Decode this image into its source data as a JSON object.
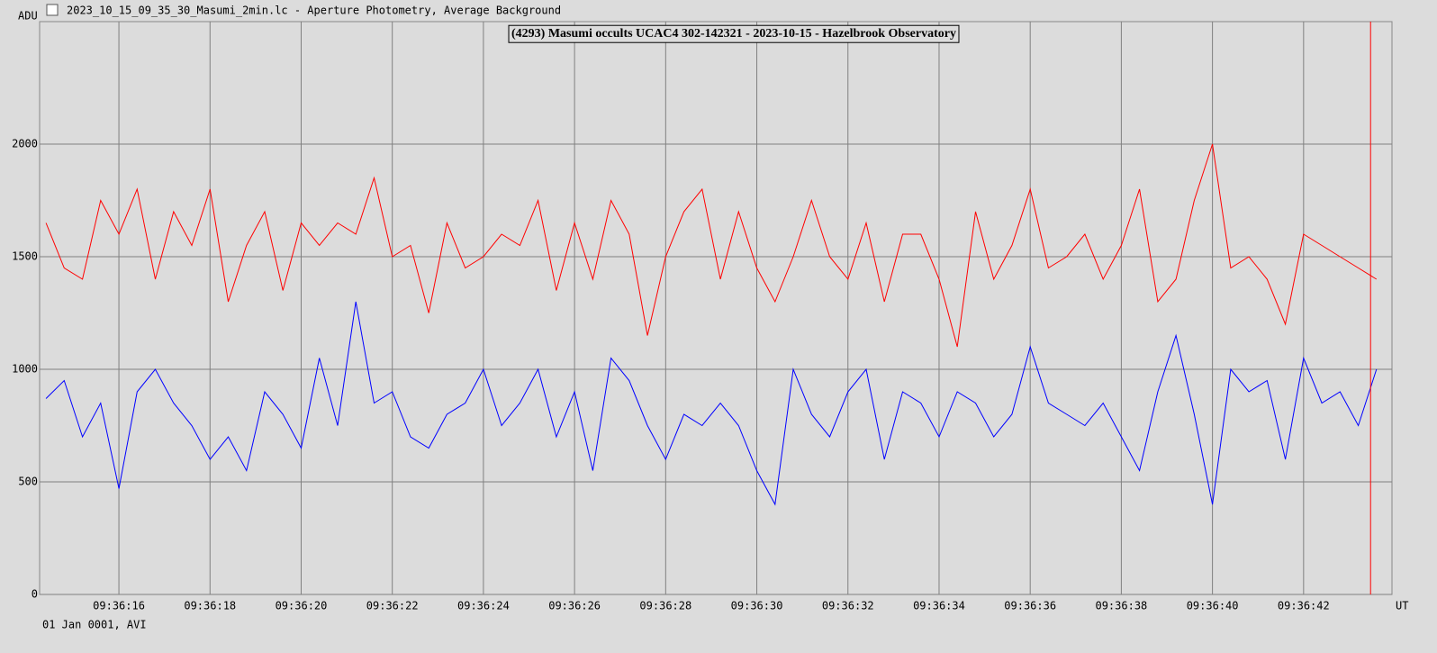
{
  "window_title": "2023_10_15_09_35_30_Masumi_2min.lc - Aperture Photometry, Average Background",
  "chart_data": {
    "type": "line",
    "title": "(4293) Masumi occults UCAC4 302-142321 - 2023-10-15 - Hazelbrook Observatory",
    "y_label": "ADU",
    "x_label": "UT",
    "footer": "01 Jan 0001, AVI",
    "x": [
      14.4,
      14.8,
      15.2,
      15.6,
      16,
      16.4,
      16.8,
      17.2,
      17.6,
      18,
      18.4,
      18.8,
      19.2,
      19.6,
      20,
      20.4,
      20.8,
      21.2,
      21.6,
      22,
      22.4,
      22.8,
      23.2,
      23.6,
      24,
      24.4,
      24.8,
      25.2,
      25.6,
      26,
      26.4,
      26.8,
      27.2,
      27.6,
      28,
      28.4,
      28.8,
      29.2,
      29.6,
      30,
      30.4,
      30.8,
      31.2,
      31.6,
      32,
      32.4,
      32.8,
      33.2,
      33.6,
      34,
      34.4,
      34.8,
      35.2,
      35.6,
      36,
      36.4,
      36.8,
      37.2,
      37.6,
      38,
      38.4,
      38.8,
      39.2,
      39.6,
      40,
      40.4,
      40.8,
      41.2,
      41.6,
      42,
      42.4,
      42.8,
      43.2,
      43.6
    ],
    "series": [
      {
        "color": "#ff0000",
        "values": [
          1650,
          1450,
          1400,
          1750,
          1600,
          1800,
          1400,
          1700,
          1550,
          1800,
          1300,
          1550,
          1700,
          1350,
          1650,
          1550,
          1650,
          1600,
          1850,
          1500,
          1550,
          1250,
          1650,
          1450,
          1500,
          1600,
          1550,
          1750,
          1350,
          1650,
          1400,
          1750,
          1600,
          1150,
          1500,
          1700,
          1800,
          1400,
          1700,
          1450,
          1300,
          1500,
          1750,
          1500,
          1400,
          1650,
          1300,
          1600,
          1600,
          1400,
          1100,
          1700,
          1400,
          1550,
          1800,
          1450,
          1500,
          1600,
          1400,
          1550,
          1800,
          1300,
          1400,
          1750,
          2000,
          1450,
          1500,
          1400,
          1200,
          1600,
          1550,
          1500,
          1450,
          1400
        ]
      },
      {
        "color": "#0000ff",
        "values": [
          870,
          950,
          700,
          850,
          470,
          900,
          1000,
          850,
          750,
          600,
          700,
          550,
          900,
          800,
          650,
          1050,
          750,
          1300,
          850,
          900,
          700,
          650,
          800,
          850,
          1000,
          750,
          850,
          1000,
          700,
          900,
          550,
          1050,
          950,
          750,
          600,
          800,
          750,
          850,
          750,
          550,
          400,
          1000,
          800,
          700,
          900,
          1000,
          600,
          900,
          850,
          700,
          900,
          850,
          700,
          800,
          1100,
          850,
          800,
          750,
          850,
          700,
          550,
          900,
          1150,
          800,
          400,
          1000,
          900,
          950,
          600,
          1050,
          850,
          900,
          750,
          1000
        ]
      }
    ],
    "xlim": [
      14.26,
      43.94
    ],
    "ylim": [
      0,
      2544
    ],
    "yticks": [
      0,
      500,
      1000,
      1500,
      2000
    ],
    "xticks": [
      {
        "value": 16,
        "label": "09:36:16"
      },
      {
        "value": 18,
        "label": "09:36:18"
      },
      {
        "value": 20,
        "label": "09:36:20"
      },
      {
        "value": 22,
        "label": "09:36:22"
      },
      {
        "value": 24,
        "label": "09:36:24"
      },
      {
        "value": 26,
        "label": "09:36:26"
      },
      {
        "value": 28,
        "label": "09:36:28"
      },
      {
        "value": 30,
        "label": "09:36:30"
      },
      {
        "value": 32,
        "label": "09:36:32"
      },
      {
        "value": 34,
        "label": "09:36:34"
      },
      {
        "value": 36,
        "label": "09:36:36"
      },
      {
        "value": 38,
        "label": "09:36:38"
      },
      {
        "value": 40,
        "label": "09:36:40"
      },
      {
        "value": 42,
        "label": "09:36:42"
      }
    ],
    "grid": true,
    "marker": {
      "x": 43.47,
      "color": "#ff0000"
    }
  }
}
